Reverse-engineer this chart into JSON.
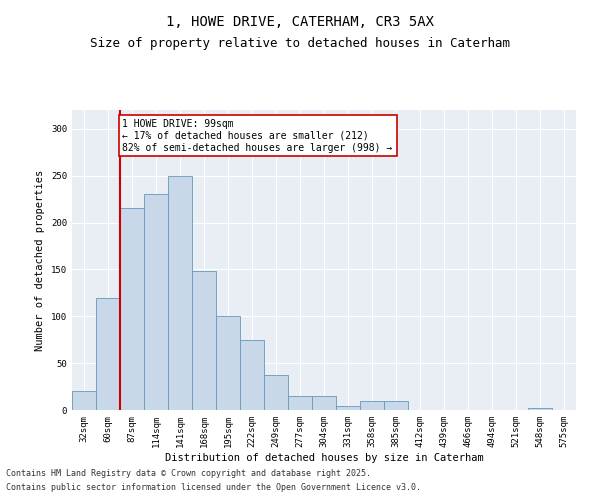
{
  "title1": "1, HOWE DRIVE, CATERHAM, CR3 5AX",
  "title2": "Size of property relative to detached houses in Caterham",
  "xlabel": "Distribution of detached houses by size in Caterham",
  "ylabel": "Number of detached properties",
  "categories": [
    "32sqm",
    "60sqm",
    "87sqm",
    "114sqm",
    "141sqm",
    "168sqm",
    "195sqm",
    "222sqm",
    "249sqm",
    "277sqm",
    "304sqm",
    "331sqm",
    "358sqm",
    "385sqm",
    "412sqm",
    "439sqm",
    "466sqm",
    "494sqm",
    "521sqm",
    "548sqm",
    "575sqm"
  ],
  "values": [
    20,
    120,
    215,
    230,
    250,
    148,
    100,
    75,
    37,
    15,
    15,
    4,
    10,
    10,
    0,
    0,
    0,
    0,
    0,
    2,
    0
  ],
  "bar_color": "#c8d8e8",
  "bar_edge_color": "#6699bb",
  "property_line_color": "#cc0000",
  "annotation_text": "1 HOWE DRIVE: 99sqm\n← 17% of detached houses are smaller (212)\n82% of semi-detached houses are larger (998) →",
  "annotation_box_color": "#cc0000",
  "background_color": "#e8eef4",
  "ylim": [
    0,
    320
  ],
  "yticks": [
    0,
    50,
    100,
    150,
    200,
    250,
    300
  ],
  "footer1": "Contains HM Land Registry data © Crown copyright and database right 2025.",
  "footer2": "Contains public sector information licensed under the Open Government Licence v3.0.",
  "title_fontsize": 10,
  "subtitle_fontsize": 9,
  "axis_label_fontsize": 7.5,
  "tick_fontsize": 6.5,
  "annotation_fontsize": 7,
  "footer_fontsize": 6
}
